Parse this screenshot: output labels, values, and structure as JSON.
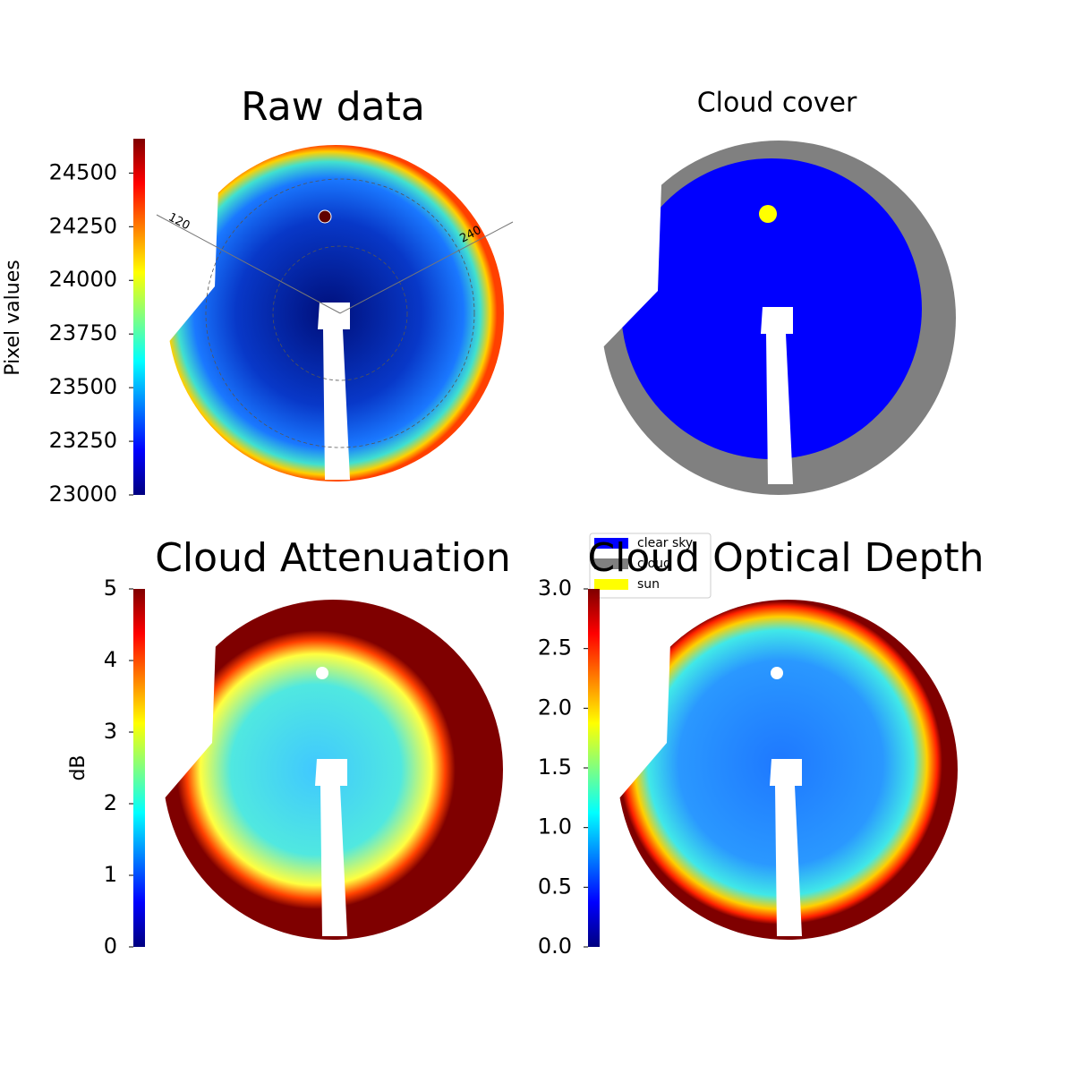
{
  "chart_data": [
    {
      "type": "image",
      "title": "Raw data",
      "colormap": "jet",
      "ylabel": "Pixel values",
      "ylim": [
        23000,
        24660
      ],
      "yticks": [
        23000,
        23250,
        23500,
        23750,
        24000,
        24250,
        24500
      ],
      "annotations": [
        "120",
        "240"
      ]
    },
    {
      "type": "image",
      "title": "Cloud cover",
      "legend": "lower left",
      "series": [
        {
          "name": "clear sky",
          "color": "#0000ff"
        },
        {
          "name": "cloud",
          "color": "#808080"
        },
        {
          "name": "sun",
          "color": "#ffff00"
        }
      ]
    },
    {
      "type": "image",
      "title": "Cloud Attenuation",
      "colormap": "jet",
      "ylabel": "dB",
      "ylim": [
        0,
        5
      ],
      "yticks": [
        0,
        1,
        2,
        3,
        4,
        5
      ]
    },
    {
      "type": "image",
      "title": "Cloud Optical Depth",
      "colormap": "jet",
      "ylim": [
        0,
        3
      ],
      "yticks": [
        {
          "value": 0,
          "label": "0.0"
        },
        0.5,
        {
          "value": 1,
          "label": "1.0"
        },
        1.5,
        {
          "value": 2,
          "label": "2.0"
        },
        2.5,
        {
          "value": 3,
          "label": "3.0"
        }
      ]
    }
  ]
}
